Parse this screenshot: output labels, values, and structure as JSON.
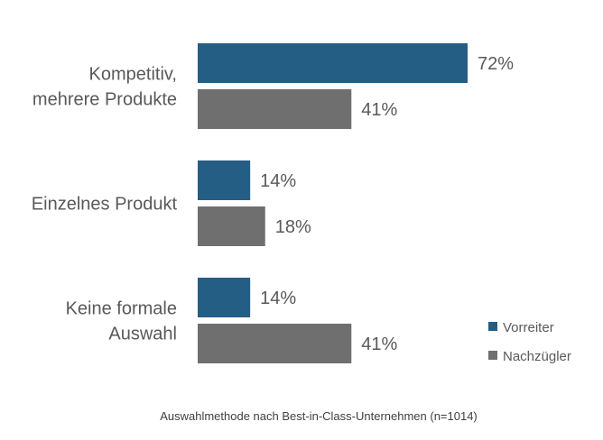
{
  "chart_data": {
    "type": "bar",
    "orientation": "horizontal",
    "categories": [
      [
        "Kompetitiv,",
        "mehrere Produkte"
      ],
      [
        "Einzelnes Produkt"
      ],
      [
        "Keine formale",
        "Auswahl"
      ]
    ],
    "series": [
      {
        "name": "Vorreiter",
        "color": "#255E84",
        "values": [
          72,
          14,
          14
        ],
        "labels": [
          "72%",
          "14%",
          "14%"
        ]
      },
      {
        "name": "Nachzügler",
        "color": "#6F6F6F",
        "values": [
          41,
          18,
          41
        ],
        "labels": [
          "41%",
          "18%",
          "41%"
        ]
      }
    ],
    "xlim": [
      0,
      100
    ],
    "grid": false,
    "legend_position": "bottom-right",
    "caption": "Auswahlmethode nach Best-in-Class-Unternehmen (n=1014)"
  }
}
